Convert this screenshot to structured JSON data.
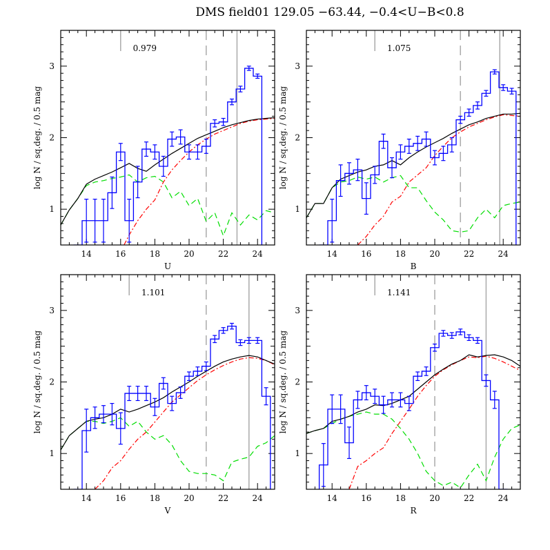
{
  "figure_title": "DMS field01  129.05  −63.44,  −0.4<U−B<0.8",
  "colors": {
    "observed": "#0000ff",
    "model_total": "#000000",
    "model_red": "#ff0000",
    "model_green": "#00dd00",
    "marker_lines": "#aaaaaa"
  },
  "chart_data": [
    {
      "type": "line",
      "xlabel": "U",
      "ylabel": "log N / sq.deg. / 0.5 mag",
      "annotation": "0.979",
      "xlim": [
        12.5,
        25.0
      ],
      "ylim": [
        0.5,
        3.5
      ],
      "xticks": [
        14,
        16,
        18,
        20,
        22,
        24
      ],
      "yticks": [
        1,
        2,
        3
      ],
      "grid": false,
      "vlines": {
        "short_solid": 16.0,
        "dashed": 21.0,
        "solid": 22.8
      },
      "observed": {
        "x": [
          13.5,
          14.0,
          14.5,
          15.0,
          15.5,
          16.0,
          16.5,
          17.0,
          17.5,
          18.0,
          18.5,
          19.0,
          19.5,
          20.0,
          20.5,
          21.0,
          21.5,
          22.0,
          22.5,
          23.0,
          23.5,
          24.0
        ],
        "y": [
          0.5,
          0.84,
          0.84,
          0.84,
          1.23,
          1.8,
          0.84,
          1.38,
          1.84,
          1.8,
          1.6,
          1.98,
          2.01,
          1.8,
          1.8,
          1.88,
          2.2,
          2.22,
          2.5,
          2.68,
          2.97,
          2.86
        ],
        "err": [
          0,
          0.3,
          0.3,
          0.3,
          0.22,
          0.12,
          0.3,
          0.22,
          0.1,
          0.1,
          0.14,
          0.1,
          0.1,
          0.1,
          0.1,
          0.1,
          0.05,
          0.05,
          0.04,
          0.04,
          0.03,
          0.03
        ],
        "cutoff": 24.0
      },
      "model_total": {
        "x": [
          12.5,
          13.0,
          13.5,
          14.0,
          14.5,
          15.0,
          15.5,
          16.0,
          16.5,
          17.0,
          17.5,
          18.0,
          18.5,
          19.0,
          19.5,
          20.0,
          20.5,
          21.0,
          21.5,
          22.0,
          22.5,
          23.0,
          23.5,
          24.0,
          24.5,
          25.0
        ],
        "y": [
          0.78,
          0.99,
          1.15,
          1.35,
          1.42,
          1.47,
          1.52,
          1.58,
          1.64,
          1.57,
          1.53,
          1.62,
          1.7,
          1.78,
          1.85,
          1.92,
          1.99,
          2.04,
          2.09,
          2.14,
          2.18,
          2.21,
          2.24,
          2.26,
          2.27,
          2.28
        ]
      },
      "model_red": {
        "x": [
          16.2,
          16.5,
          17.0,
          17.5,
          18.0,
          18.5,
          19.0,
          19.5,
          20.0,
          20.5,
          21.0,
          21.5,
          22.0,
          22.5,
          23.0,
          23.5,
          24.0,
          24.5,
          25.0
        ],
        "y": [
          0.5,
          0.64,
          0.84,
          1.0,
          1.13,
          1.38,
          1.55,
          1.68,
          1.8,
          1.9,
          1.98,
          2.05,
          2.1,
          2.15,
          2.2,
          2.23,
          2.25,
          2.26,
          2.27
        ]
      },
      "model_green": {
        "x": [
          12.5,
          13.0,
          13.5,
          14.0,
          14.5,
          15.0,
          15.5,
          16.0,
          16.5,
          17.0,
          17.5,
          18.0,
          18.5,
          19.0,
          19.5,
          20.0,
          20.5,
          21.0,
          21.5,
          22.0,
          22.5,
          23.0,
          23.5,
          24.0,
          24.5,
          25.0
        ],
        "y": [
          0.78,
          0.99,
          1.15,
          1.33,
          1.38,
          1.4,
          1.43,
          1.45,
          1.48,
          1.38,
          1.44,
          1.46,
          1.38,
          1.16,
          1.25,
          1.05,
          1.15,
          0.83,
          0.95,
          0.63,
          0.95,
          0.78,
          0.92,
          0.85,
          0.98,
          0.95
        ]
      }
    },
    {
      "type": "line",
      "xlabel": "B",
      "ylabel": "log N / sq.deg. / 0.5 mag",
      "annotation": "1.075",
      "xlim": [
        12.5,
        25.0
      ],
      "ylim": [
        0.5,
        3.5
      ],
      "xticks": [
        14,
        16,
        18,
        20,
        22,
        24
      ],
      "yticks": [
        1,
        2,
        3
      ],
      "grid": false,
      "vlines": {
        "short_solid": 16.5,
        "dashed": 21.5,
        "solid": 23.8
      },
      "observed": {
        "x": [
          13.5,
          14.0,
          14.5,
          15.0,
          15.5,
          16.0,
          16.5,
          17.0,
          17.5,
          18.0,
          18.5,
          19.0,
          19.5,
          20.0,
          20.5,
          21.0,
          21.5,
          22.0,
          22.5,
          23.0,
          23.5,
          24.0,
          24.5
        ],
        "y": [
          0.5,
          0.84,
          1.4,
          1.5,
          1.55,
          1.15,
          1.48,
          1.95,
          1.58,
          1.8,
          1.88,
          1.92,
          1.98,
          1.72,
          1.78,
          1.9,
          2.25,
          2.35,
          2.45,
          2.62,
          2.92,
          2.7,
          2.65
        ],
        "err": [
          0,
          0.3,
          0.22,
          0.15,
          0.15,
          0.22,
          0.12,
          0.1,
          0.14,
          0.1,
          0.1,
          0.1,
          0.1,
          0.1,
          0.1,
          0.1,
          0.05,
          0.05,
          0.05,
          0.04,
          0.03,
          0.04,
          0.04
        ],
        "cutoff": 24.5
      },
      "model_total": {
        "x": [
          12.5,
          13.0,
          13.5,
          14.0,
          14.5,
          15.0,
          15.5,
          16.0,
          16.5,
          17.0,
          17.5,
          18.0,
          18.5,
          19.0,
          19.5,
          20.0,
          20.5,
          21.0,
          21.5,
          22.0,
          22.5,
          23.0,
          23.5,
          24.0,
          24.5,
          25.0
        ],
        "y": [
          0.88,
          1.08,
          1.08,
          1.3,
          1.42,
          1.47,
          1.52,
          1.55,
          1.6,
          1.62,
          1.68,
          1.62,
          1.72,
          1.8,
          1.87,
          1.93,
          1.99,
          2.06,
          2.12,
          2.18,
          2.22,
          2.27,
          2.3,
          2.33,
          2.33,
          2.34
        ]
      },
      "model_red": {
        "x": [
          15.5,
          16.0,
          16.5,
          17.0,
          17.5,
          18.0,
          18.5,
          19.0,
          19.5,
          20.0,
          20.5,
          21.0,
          21.5,
          22.0,
          22.5,
          23.0,
          23.5,
          24.0,
          24.5,
          25.0
        ],
        "y": [
          0.5,
          0.62,
          0.78,
          0.9,
          1.1,
          1.18,
          1.38,
          1.48,
          1.58,
          1.75,
          1.88,
          2.0,
          2.08,
          2.15,
          2.2,
          2.25,
          2.29,
          2.32,
          2.31,
          2.3
        ]
      },
      "model_green": {
        "x": [
          12.5,
          13.0,
          13.5,
          14.0,
          14.5,
          15.0,
          15.5,
          16.0,
          16.5,
          17.0,
          17.5,
          18.0,
          18.5,
          19.0,
          19.5,
          20.0,
          20.5,
          21.0,
          21.5,
          22.0,
          22.5,
          23.0,
          23.5,
          24.0,
          24.5,
          25.0
        ],
        "y": [
          0.88,
          1.08,
          1.08,
          1.3,
          1.38,
          1.4,
          1.45,
          1.42,
          1.45,
          1.38,
          1.44,
          1.47,
          1.3,
          1.3,
          1.12,
          0.96,
          0.85,
          0.7,
          0.68,
          0.7,
          0.88,
          1.0,
          0.88,
          1.05,
          1.08,
          1.1
        ]
      }
    },
    {
      "type": "line",
      "xlabel": "V",
      "ylabel": "log N / sq.deg. / 0.5 mag",
      "annotation": "1.101",
      "xlim": [
        12.5,
        25.0
      ],
      "ylim": [
        0.5,
        3.5
      ],
      "xticks": [
        14,
        16,
        18,
        20,
        22,
        24
      ],
      "yticks": [
        1,
        2,
        3
      ],
      "grid": false,
      "vlines": {
        "short_solid": 16.5,
        "dashed": 21.0,
        "solid": 23.5
      },
      "observed": {
        "x": [
          13.5,
          14.0,
          14.5,
          15.0,
          15.5,
          16.0,
          16.5,
          17.0,
          17.5,
          18.0,
          18.5,
          19.0,
          19.5,
          20.0,
          20.5,
          21.0,
          21.5,
          22.0,
          22.5,
          23.0,
          23.5,
          24.0,
          24.5
        ],
        "y": [
          0.5,
          1.32,
          1.5,
          1.55,
          1.55,
          1.35,
          1.84,
          1.84,
          1.84,
          1.65,
          1.98,
          1.7,
          1.85,
          2.08,
          2.15,
          2.22,
          2.6,
          2.72,
          2.78,
          2.55,
          2.58,
          2.58,
          1.8
        ],
        "err": [
          0,
          0.3,
          0.15,
          0.12,
          0.15,
          0.22,
          0.1,
          0.1,
          0.1,
          0.12,
          0.08,
          0.1,
          0.08,
          0.06,
          0.06,
          0.06,
          0.05,
          0.04,
          0.04,
          0.04,
          0.04,
          0.04,
          0.12
        ],
        "cutoff": 24.5
      },
      "model_total": {
        "x": [
          12.5,
          13.0,
          13.5,
          14.0,
          14.5,
          15.0,
          15.5,
          16.0,
          16.5,
          17.0,
          17.5,
          18.0,
          18.5,
          19.0,
          19.5,
          20.0,
          20.5,
          21.0,
          21.5,
          22.0,
          22.5,
          23.0,
          23.5,
          24.0,
          24.5,
          25.0
        ],
        "y": [
          1.05,
          1.25,
          1.35,
          1.45,
          1.48,
          1.5,
          1.55,
          1.62,
          1.58,
          1.62,
          1.67,
          1.72,
          1.78,
          1.86,
          1.93,
          2.0,
          2.08,
          2.15,
          2.22,
          2.28,
          2.32,
          2.35,
          2.37,
          2.35,
          2.3,
          2.25
        ]
      },
      "model_red": {
        "x": [
          14.5,
          15.0,
          15.5,
          16.0,
          16.5,
          17.0,
          17.5,
          18.0,
          18.5,
          19.0,
          19.5,
          20.0,
          20.5,
          21.0,
          21.5,
          22.0,
          22.5,
          23.0,
          23.5,
          24.0,
          24.5,
          25.0
        ],
        "y": [
          0.5,
          0.62,
          0.8,
          0.9,
          1.06,
          1.2,
          1.3,
          1.44,
          1.58,
          1.72,
          1.82,
          1.92,
          2.02,
          2.1,
          2.17,
          2.23,
          2.28,
          2.32,
          2.34,
          2.33,
          2.3,
          2.24
        ]
      },
      "model_green": {
        "x": [
          12.5,
          13.0,
          13.5,
          14.0,
          14.5,
          15.0,
          15.5,
          16.0,
          16.5,
          17.0,
          17.5,
          18.0,
          18.5,
          19.0,
          19.5,
          20.0,
          20.5,
          21.0,
          21.5,
          22.0,
          22.5,
          23.0,
          23.5,
          24.0,
          24.5,
          25.0
        ],
        "y": [
          1.05,
          1.25,
          1.35,
          1.45,
          1.45,
          1.42,
          1.45,
          1.5,
          1.38,
          1.45,
          1.3,
          1.2,
          1.25,
          1.12,
          0.9,
          0.75,
          0.72,
          0.72,
          0.7,
          0.62,
          0.88,
          0.92,
          0.95,
          1.1,
          1.15,
          1.25
        ]
      }
    },
    {
      "type": "line",
      "xlabel": "R",
      "ylabel": "log N / sq.deg. / 0.5 mag",
      "annotation": "1.141",
      "xlim": [
        12.5,
        25.0
      ],
      "ylim": [
        0.5,
        3.5
      ],
      "xticks": [
        14,
        16,
        18,
        20,
        22,
        24
      ],
      "yticks": [
        1,
        2,
        3
      ],
      "grid": false,
      "vlines": {
        "short_solid": 16.5,
        "dashed": 20.0,
        "solid": 23.0
      },
      "observed": {
        "x": [
          13.5,
          14.0,
          14.5,
          15.0,
          15.5,
          16.0,
          16.5,
          17.0,
          17.5,
          18.0,
          18.5,
          19.0,
          19.5,
          20.0,
          20.5,
          21.0,
          21.5,
          22.0,
          22.5,
          23.0,
          23.5,
          24.0
        ],
        "y": [
          0.84,
          1.62,
          1.62,
          1.15,
          1.75,
          1.85,
          1.8,
          1.68,
          1.75,
          1.75,
          1.7,
          2.08,
          2.15,
          2.48,
          2.68,
          2.65,
          2.7,
          2.62,
          2.58,
          2.02,
          1.75,
          0.5
        ],
        "err": [
          0.3,
          0.2,
          0.2,
          0.22,
          0.12,
          0.1,
          0.1,
          0.12,
          0.1,
          0.1,
          0.1,
          0.06,
          0.06,
          0.05,
          0.04,
          0.04,
          0.04,
          0.04,
          0.04,
          0.08,
          0.12,
          0
        ],
        "cutoff": 24.0
      },
      "model_total": {
        "x": [
          12.5,
          13.0,
          13.5,
          14.0,
          14.5,
          15.0,
          15.5,
          16.0,
          16.5,
          17.0,
          17.5,
          18.0,
          18.5,
          19.0,
          19.5,
          20.0,
          20.5,
          21.0,
          21.5,
          22.0,
          22.5,
          23.0,
          23.5,
          24.0,
          24.5,
          25.0
        ],
        "y": [
          1.28,
          1.32,
          1.35,
          1.45,
          1.48,
          1.52,
          1.58,
          1.62,
          1.68,
          1.67,
          1.7,
          1.75,
          1.8,
          1.9,
          2.0,
          2.1,
          2.18,
          2.25,
          2.3,
          2.38,
          2.35,
          2.37,
          2.38,
          2.35,
          2.3,
          2.22
        ]
      },
      "model_red": {
        "x": [
          15.0,
          15.5,
          16.0,
          16.5,
          17.0,
          17.5,
          18.0,
          18.5,
          19.0,
          19.5,
          20.0,
          20.5,
          21.0,
          21.5,
          22.0,
          22.5,
          23.0,
          23.5,
          24.0,
          24.5,
          25.0
        ],
        "y": [
          0.5,
          0.82,
          0.9,
          1.0,
          1.08,
          1.28,
          1.45,
          1.62,
          1.8,
          1.95,
          2.08,
          2.17,
          2.24,
          2.3,
          2.35,
          2.34,
          2.36,
          2.33,
          2.28,
          2.22,
          2.16
        ]
      },
      "model_green": {
        "x": [
          12.5,
          13.0,
          13.5,
          14.0,
          14.5,
          15.0,
          15.5,
          16.0,
          16.5,
          17.0,
          17.5,
          18.0,
          18.5,
          19.0,
          19.5,
          20.0,
          20.5,
          21.0,
          21.5,
          22.0,
          22.5,
          23.0,
          23.5,
          24.0,
          24.5,
          25.0
        ],
        "y": [
          1.28,
          1.32,
          1.35,
          1.42,
          1.48,
          1.52,
          1.55,
          1.58,
          1.55,
          1.55,
          1.48,
          1.35,
          1.2,
          1.0,
          0.75,
          0.62,
          0.55,
          0.6,
          0.52,
          0.7,
          0.85,
          0.62,
          0.95,
          1.2,
          1.35,
          1.4
        ]
      }
    }
  ]
}
